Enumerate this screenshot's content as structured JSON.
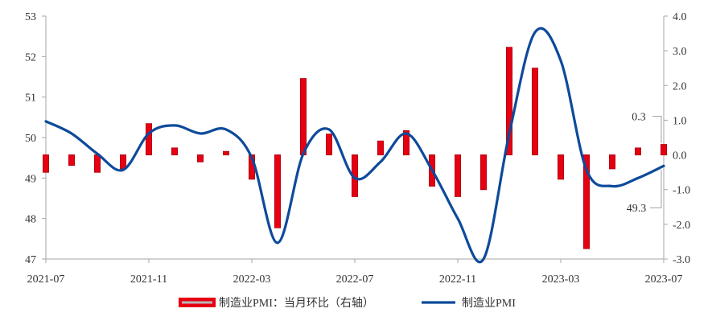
{
  "chart_data": {
    "type": "bar+line",
    "x": [
      "2021-07",
      "2021-08",
      "2021-09",
      "2021-10",
      "2021-11",
      "2021-12",
      "2022-01",
      "2022-02",
      "2022-03",
      "2022-04",
      "2022-05",
      "2022-06",
      "2022-07",
      "2022-08",
      "2022-09",
      "2022-10",
      "2022-11",
      "2022-12",
      "2023-01",
      "2023-02",
      "2023-03",
      "2023-04",
      "2023-05",
      "2023-06",
      "2023-07"
    ],
    "x_ticks": [
      "2021-07",
      "2021-11",
      "2022-03",
      "2022-07",
      "2022-11",
      "2023-03",
      "2023-07"
    ],
    "series": [
      {
        "name": "制造业PMI：当月环比（右轴）",
        "type": "bar",
        "axis": "right",
        "values": [
          -0.5,
          -0.3,
          -0.5,
          -0.4,
          0.9,
          0.2,
          -0.2,
          0.1,
          -0.7,
          -2.1,
          2.2,
          0.6,
          -1.2,
          0.4,
          0.7,
          -0.9,
          -1.2,
          -1.0,
          3.1,
          2.5,
          -0.7,
          -2.7,
          -0.4,
          0.2,
          0.3
        ]
      },
      {
        "name": "制造业PMI",
        "type": "line",
        "axis": "left",
        "smooth": true,
        "values": [
          50.4,
          50.1,
          49.6,
          49.2,
          50.1,
          50.3,
          50.1,
          50.2,
          49.5,
          47.4,
          49.6,
          50.2,
          49.0,
          49.4,
          50.1,
          49.2,
          48.0,
          47.0,
          50.1,
          52.6,
          51.9,
          49.2,
          48.8,
          49.0,
          49.3
        ]
      }
    ],
    "y_left": {
      "range": [
        47,
        53
      ],
      "ticks": [
        "47",
        "48",
        "49",
        "50",
        "51",
        "52",
        "53"
      ]
    },
    "y_right": {
      "range": [
        -3,
        4
      ],
      "ticks": [
        "-3.0",
        "-2.0",
        "-1.0",
        "0.0",
        "1.0",
        "2.0",
        "3.0",
        "4.0"
      ]
    },
    "annotations": [
      {
        "text": "0.3",
        "series": 0,
        "x": "2023-07"
      },
      {
        "text": "49.3",
        "series": 1,
        "x": "2023-07"
      }
    ],
    "title": "",
    "xlabel": "",
    "ylabel": "",
    "grid": false,
    "legend": "bottom",
    "colors": {
      "bar": "#e60012",
      "bar_edge": "#b5000e",
      "line": "#0d4a9b",
      "axis": "#a6a6a6",
      "leader": "#a0a0a0"
    }
  }
}
